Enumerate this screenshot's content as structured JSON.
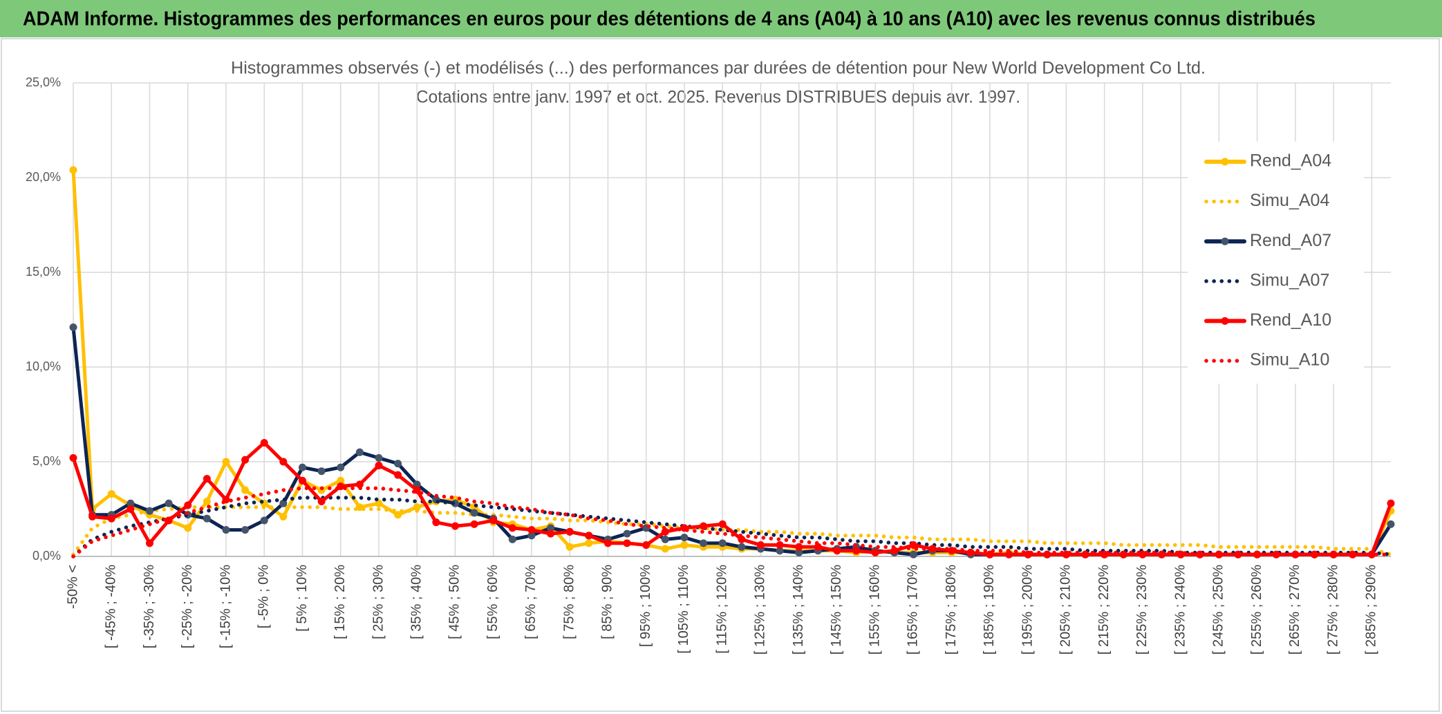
{
  "header": {
    "title": "ADAM Informe. Histogrammes des performances en euros pour des détentions de 4 ans (A04) à 10 ans (A10) avec les revenus connus distribués"
  },
  "chart_data": {
    "type": "line",
    "title": "Histogrammes observés (-) et modélisés (...) des performances par durées de détention pour New World Development Co Ltd.",
    "subtitle": "Cotations entre janv. 1997 et oct. 2025. Revenus DISTRIBUES depuis avr. 1997.",
    "categories": [
      "-50% <",
      null,
      "[ -45% ; -40%",
      null,
      "[ -35% ; -30%",
      null,
      "[ -25% ; -20%",
      null,
      "[ -15% ; -10%",
      null,
      "[ -5% ; 0%",
      null,
      "[ 5% ; 10%",
      null,
      "[ 15% ; 20%",
      null,
      "[ 25% ; 30%",
      null,
      "[ 35% ; 40%",
      null,
      "[ 45% ; 50%",
      null,
      "[ 55% ; 60%",
      null,
      "[ 65% ; 70%",
      null,
      "[ 75% ; 80%",
      null,
      "[ 85% ; 90%",
      null,
      "[ 95% ; 100%",
      null,
      "[ 105% ; 110%",
      null,
      "[ 115% ; 120%",
      null,
      "[ 125% ; 130%",
      null,
      "[ 135% ; 140%",
      null,
      "[ 145% ; 150%",
      null,
      "[ 155% ; 160%",
      null,
      "[ 165% ; 170%",
      null,
      "[ 175% ; 180%",
      null,
      "[ 185% ; 190%",
      null,
      "[ 195% ; 200%",
      null,
      "[ 205% ; 210%",
      null,
      "[ 215% ; 220%",
      null,
      "[ 225% ; 230%",
      null,
      "[ 235% ; 240%",
      null,
      "[ 245% ; 250%",
      null,
      "[ 255% ; 260%",
      null,
      "[ 265% ; 270%",
      null,
      "[ 275% ; 280%",
      null,
      "[ 285% ; 290%",
      null
    ],
    "ylim": [
      0,
      25
    ],
    "yticks": [
      {
        "value": 0,
        "label": "0,0%"
      },
      {
        "value": 5,
        "label": "5,0%"
      },
      {
        "value": 10,
        "label": "10,0%"
      },
      {
        "value": 15,
        "label": "15,0%"
      },
      {
        "value": 20,
        "label": "20,0%"
      },
      {
        "value": 25,
        "label": "25,0%"
      }
    ],
    "grid": true,
    "legend": "right",
    "series": [
      {
        "name": "Rend_A04",
        "color": "#ffc000",
        "line_style": "solid",
        "marker": true,
        "values": [
          20.4,
          2.5,
          3.3,
          2.7,
          2.2,
          1.9,
          1.5,
          2.9,
          5.0,
          3.5,
          2.8,
          2.1,
          4.0,
          3.5,
          4.0,
          2.6,
          2.8,
          2.2,
          2.6,
          2.9,
          3.0,
          2.6,
          1.8,
          1.7,
          1.4,
          1.6,
          0.5,
          0.7,
          0.8,
          0.7,
          0.6,
          0.4,
          0.6,
          0.5,
          0.5,
          0.4,
          0.4,
          0.3,
          0.3,
          0.3,
          0.3,
          0.2,
          0.3,
          0.2,
          0.2,
          0.2,
          0.2,
          0.2,
          0.1,
          0.2,
          0.1,
          0.1,
          0.1,
          0.1,
          0.1,
          0.1,
          0.1,
          0.1,
          0.1,
          0.1,
          0.1,
          0.1,
          0.1,
          0.1,
          0.1,
          0.1,
          0.1,
          0.1,
          0.1,
          2.4
        ]
      },
      {
        "name": "Simu_A04",
        "color": "#ffc000",
        "line_style": "dotted",
        "marker": false,
        "values": [
          0.1,
          1.5,
          2.0,
          2.2,
          2.4,
          2.5,
          2.6,
          2.6,
          2.6,
          2.6,
          2.6,
          2.6,
          2.6,
          2.6,
          2.5,
          2.5,
          2.5,
          2.4,
          2.4,
          2.3,
          2.3,
          2.2,
          2.2,
          2.1,
          2.0,
          2.0,
          1.9,
          1.9,
          1.8,
          1.7,
          1.7,
          1.6,
          1.5,
          1.5,
          1.4,
          1.4,
          1.3,
          1.3,
          1.2,
          1.2,
          1.1,
          1.1,
          1.1,
          1.0,
          1.0,
          0.9,
          0.9,
          0.9,
          0.8,
          0.8,
          0.8,
          0.7,
          0.7,
          0.7,
          0.7,
          0.6,
          0.6,
          0.6,
          0.6,
          0.6,
          0.5,
          0.5,
          0.5,
          0.5,
          0.5,
          0.5,
          0.4,
          0.4,
          0.4,
          0.1
        ]
      },
      {
        "name": "Rend_A07",
        "color": "#0d2454",
        "line_style": "solid",
        "marker": true,
        "values": [
          12.1,
          2.2,
          2.2,
          2.8,
          2.4,
          2.8,
          2.2,
          2.0,
          1.4,
          1.4,
          1.9,
          2.8,
          4.7,
          4.5,
          4.7,
          5.5,
          5.2,
          4.9,
          3.8,
          3.0,
          2.8,
          2.3,
          2.0,
          0.9,
          1.1,
          1.5,
          1.3,
          1.1,
          0.9,
          1.2,
          1.5,
          0.9,
          1.0,
          0.7,
          0.7,
          0.5,
          0.4,
          0.3,
          0.2,
          0.3,
          0.4,
          0.5,
          0.3,
          0.2,
          0.1,
          0.3,
          0.3,
          0.1,
          0.1,
          0.1,
          0.1,
          0.1,
          0.1,
          0.1,
          0.1,
          0.1,
          0.1,
          0.1,
          0.1,
          0.1,
          0.1,
          0.1,
          0.1,
          0.1,
          0.1,
          0.1,
          0.1,
          0.1,
          0.1,
          1.7
        ]
      },
      {
        "name": "Simu_A07",
        "color": "#0d2454",
        "line_style": "dotted",
        "marker": false,
        "values": [
          0.0,
          0.9,
          1.3,
          1.6,
          1.8,
          2.0,
          2.2,
          2.4,
          2.6,
          2.8,
          2.9,
          3.0,
          3.1,
          3.1,
          3.1,
          3.1,
          3.0,
          3.0,
          2.9,
          2.9,
          2.8,
          2.7,
          2.6,
          2.5,
          2.4,
          2.3,
          2.2,
          2.1,
          2.0,
          1.9,
          1.8,
          1.7,
          1.6,
          1.5,
          1.4,
          1.3,
          1.2,
          1.1,
          1.0,
          1.0,
          0.9,
          0.8,
          0.8,
          0.7,
          0.7,
          0.6,
          0.6,
          0.5,
          0.5,
          0.5,
          0.4,
          0.4,
          0.4,
          0.3,
          0.3,
          0.3,
          0.3,
          0.3,
          0.2,
          0.2,
          0.2,
          0.2,
          0.2,
          0.2,
          0.2,
          0.2,
          0.2,
          0.2,
          0.2,
          0.1
        ]
      },
      {
        "name": "Rend_A10",
        "color": "#ff0000",
        "line_style": "solid",
        "marker": true,
        "values": [
          5.2,
          2.1,
          2.0,
          2.5,
          0.7,
          1.9,
          2.7,
          4.1,
          3.0,
          5.1,
          6.0,
          5.0,
          4.0,
          2.9,
          3.7,
          3.8,
          4.8,
          4.3,
          3.5,
          1.8,
          1.6,
          1.7,
          1.9,
          1.5,
          1.4,
          1.2,
          1.3,
          1.1,
          0.7,
          0.7,
          0.6,
          1.3,
          1.5,
          1.6,
          1.7,
          0.9,
          0.6,
          0.6,
          0.5,
          0.5,
          0.3,
          0.3,
          0.2,
          0.3,
          0.6,
          0.4,
          0.3,
          0.2,
          0.1,
          0.1,
          0.1,
          0.1,
          0.1,
          0.1,
          0.1,
          0.1,
          0.1,
          0.1,
          0.1,
          0.1,
          0.1,
          0.1,
          0.1,
          0.1,
          0.1,
          0.1,
          0.1,
          0.1,
          0.1,
          2.8
        ]
      },
      {
        "name": "Simu_A10",
        "color": "#ff0000",
        "line_style": "dotted",
        "marker": false,
        "values": [
          0.0,
          0.8,
          1.1,
          1.4,
          1.7,
          2.0,
          2.3,
          2.6,
          2.9,
          3.1,
          3.3,
          3.5,
          3.6,
          3.6,
          3.6,
          3.6,
          3.6,
          3.5,
          3.4,
          3.2,
          3.1,
          2.9,
          2.8,
          2.6,
          2.5,
          2.3,
          2.2,
          2.0,
          1.9,
          1.7,
          1.6,
          1.5,
          1.4,
          1.3,
          1.2,
          1.1,
          1.0,
          0.9,
          0.8,
          0.7,
          0.7,
          0.6,
          0.5,
          0.5,
          0.4,
          0.4,
          0.4,
          0.3,
          0.3,
          0.3,
          0.2,
          0.2,
          0.2,
          0.2,
          0.2,
          0.2,
          0.2,
          0.2,
          0.2,
          0.1,
          0.1,
          0.1,
          0.1,
          0.1,
          0.1,
          0.1,
          0.1,
          0.1,
          0.1,
          0.1
        ]
      }
    ]
  }
}
